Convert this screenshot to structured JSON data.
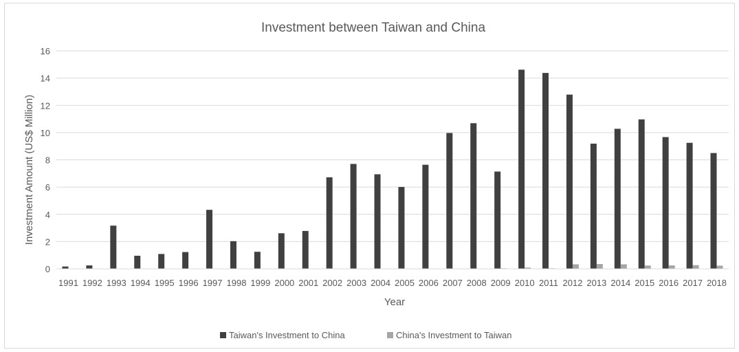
{
  "chart_data": {
    "type": "bar",
    "title": "Investment between Taiwan and China",
    "xlabel": "Year",
    "ylabel": "Investment Amount (US$ Million)",
    "ylim": [
      0,
      16
    ],
    "y_ticks": [
      "0",
      "2",
      "4",
      "6",
      "8",
      "10",
      "12",
      "14",
      "16"
    ],
    "grid": true,
    "legend_position": "bottom",
    "categories": [
      "1991",
      "1992",
      "1993",
      "1994",
      "1995",
      "1996",
      "1997",
      "1998",
      "1999",
      "2000",
      "2001",
      "2002",
      "2003",
      "2004",
      "2005",
      "2006",
      "2007",
      "2008",
      "2009",
      "2010",
      "2011",
      "2012",
      "2013",
      "2014",
      "2015",
      "2016",
      "2017",
      "2018"
    ],
    "series": [
      {
        "name": "Taiwan's Investment to China",
        "color": "#404040",
        "values": [
          0.17,
          0.25,
          3.17,
          0.96,
          1.09,
          1.23,
          4.33,
          2.03,
          1.25,
          2.61,
          2.78,
          6.72,
          7.7,
          6.94,
          6.01,
          7.64,
          9.97,
          10.69,
          7.14,
          14.62,
          14.38,
          12.79,
          9.19,
          10.28,
          10.97,
          9.67,
          9.25,
          8.5
        ]
      },
      {
        "name": "China's Investment to Taiwan",
        "color": "#a5a5a5",
        "values": [
          0,
          0,
          0,
          0,
          0,
          0,
          0,
          0,
          0,
          0,
          0,
          0,
          0,
          0,
          0,
          0,
          0,
          0,
          0.04,
          0.09,
          0.04,
          0.33,
          0.35,
          0.33,
          0.24,
          0.25,
          0.27,
          0.23
        ]
      }
    ]
  }
}
